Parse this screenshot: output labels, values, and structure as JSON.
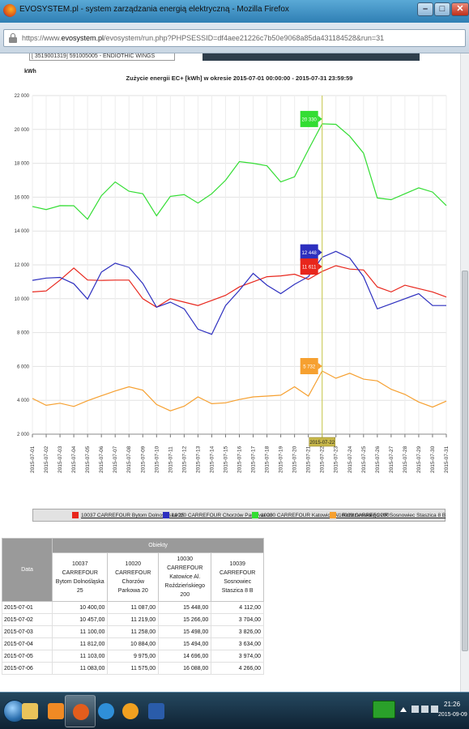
{
  "window": {
    "title": "EVOSYSTEM.pl - system zarządzania energią elektryczną - Mozilla Firefox",
    "minimize_glyph": "–",
    "maximize_glyph": "□",
    "close_glyph": "✕"
  },
  "browser": {
    "url_prefix": "https://www.",
    "url_domain": "evosystem.pl",
    "url_rest": "/evosystem/run.php?PHPSESSID=df4aee21226c7b50e9068a85da431184528&run=31"
  },
  "page": {
    "previous_row_text": "[ 3519001319] 591005005 - ENDIOTHIC WINGS"
  },
  "chart_data": {
    "type": "line",
    "title": "Zużycie energii EC+ [kWh] w okresie 2015-07-01 00:00:00 - 2015-07-31 23:59:59",
    "ylabel": "kWh",
    "ylim": [
      2000,
      22000
    ],
    "yticks": [
      2000,
      4000,
      6000,
      8000,
      10000,
      12000,
      14000,
      16000,
      18000,
      20000,
      22000
    ],
    "ytick_labels": [
      "2 000",
      "4 000",
      "6 000",
      "8 000",
      "10 000",
      "12 000",
      "14 000",
      "16 000",
      "18 000",
      "20 000",
      "22 000"
    ],
    "grid": true,
    "categories": [
      "2015-07-01",
      "2015-07-02",
      "2015-07-03",
      "2015-07-04",
      "2015-07-05",
      "2015-07-06",
      "2015-07-07",
      "2015-07-08",
      "2015-07-09",
      "2015-07-10",
      "2015-07-11",
      "2015-07-12",
      "2015-07-13",
      "2015-07-14",
      "2015-07-15",
      "2015-07-16",
      "2015-07-17",
      "2015-07-18",
      "2015-07-19",
      "2015-07-20",
      "2015-07-21",
      "2015-07-22",
      "2015-07-23",
      "2015-07-24",
      "2015-07-25",
      "2015-07-26",
      "2015-07-27",
      "2015-07-28",
      "2015-07-29",
      "2015-07-30",
      "2015-07-31"
    ],
    "series": [
      {
        "name": "10037 CARREFOUR Bytom Dolnośląska 25",
        "color": "#e8261c",
        "values": [
          10400,
          10457,
          11100,
          11812,
          11103,
          11083,
          11100,
          11100,
          10000,
          9500,
          10000,
          9800,
          9600,
          9900,
          10200,
          10700,
          11000,
          11300,
          11350,
          11450,
          11150,
          11611,
          11950,
          11750,
          11700,
          10700,
          10400,
          10800,
          10600,
          10400,
          10100
        ]
      },
      {
        "name": "10020 CARREFOUR Chorzów Parkowa 20",
        "color": "#2d2fbf",
        "values": [
          11087,
          11219,
          11258,
          10884,
          9975,
          11575,
          12100,
          11850,
          10900,
          9500,
          9800,
          9400,
          8200,
          7900,
          9600,
          10500,
          11500,
          10800,
          10300,
          10850,
          11300,
          12448,
          12800,
          12400,
          11300,
          9400,
          9700,
          10000,
          10300,
          9600,
          9600
        ]
      },
      {
        "name": "10030 CARREFOUR Katowice Al. Roździeńskiego 200",
        "color": "#33dd33",
        "values": [
          15448,
          15266,
          15498,
          15494,
          14696,
          16088,
          16900,
          16350,
          16200,
          14900,
          16050,
          16150,
          15650,
          16200,
          17000,
          18100,
          18000,
          17850,
          16900,
          17200,
          18800,
          20330,
          20300,
          19600,
          18600,
          15950,
          15850,
          16200,
          16550,
          16300,
          15500
        ]
      },
      {
        "name": "10039 CARREFOUR Sosnowiec Staszica 8 B",
        "color": "#f6a030",
        "values": [
          4112,
          3704,
          3826,
          3634,
          3974,
          4266,
          4550,
          4800,
          4600,
          3750,
          3380,
          3650,
          4200,
          3800,
          3850,
          4050,
          4200,
          4250,
          4300,
          4800,
          4250,
          5732,
          5300,
          5600,
          5250,
          5150,
          4650,
          4350,
          3900,
          3600,
          3950
        ]
      }
    ],
    "tooltip": {
      "category": "2015-07-22",
      "labels": [
        "20 330",
        "12 448",
        "11 611",
        "5 732"
      ]
    }
  },
  "legend": {
    "items": [
      {
        "label": "10037 CARREFOUR Bytom Dolnośląska 25",
        "color": "#e8261c"
      },
      {
        "label": "10020 CARREFOUR Chorzów Parkowa 20",
        "color": "#2d2fbf"
      },
      {
        "label": "10030 CARREFOUR Katowice Al. Roździeńskiego 200",
        "color": "#33dd33"
      },
      {
        "label": "10039 CARREFOUR Sosnowiec Staszica 8 B",
        "color": "#f6a030"
      }
    ]
  },
  "table": {
    "group_header": "Obiekty",
    "date_header": "Data",
    "columns": [
      "10037 CARREFOUR Bytom Dolnośląska 25",
      "10020 CARREFOUR Chorzów Parkowa 20",
      "10030 CARREFOUR Katowice Al. Roździeńskiego 200",
      "10039 CARREFOUR Sosnowiec Staszica 8 B"
    ],
    "rows": [
      {
        "date": "2015-07-01",
        "values": [
          "10 400,00",
          "11 087,00",
          "15 448,00",
          "4 112,00"
        ]
      },
      {
        "date": "2015-07-02",
        "values": [
          "10 457,00",
          "11 219,00",
          "15 266,00",
          "3 704,00"
        ]
      },
      {
        "date": "2015-07-03",
        "values": [
          "11 100,00",
          "11 258,00",
          "15 498,00",
          "3 826,00"
        ]
      },
      {
        "date": "2015-07-04",
        "values": [
          "11 812,00",
          "10 884,00",
          "15 494,00",
          "3 634,00"
        ]
      },
      {
        "date": "2015-07-05",
        "values": [
          "11 103,00",
          "9 975,00",
          "14 696,00",
          "3 974,00"
        ]
      },
      {
        "date": "2015-07-06",
        "values": [
          "11 083,00",
          "11 575,00",
          "16 088,00",
          "4 266,00"
        ]
      }
    ]
  },
  "taskbar": {
    "apps": [
      {
        "name": "explorer-icon",
        "color": "#e9c35a"
      },
      {
        "name": "media-player-icon",
        "color": "#f08a24"
      },
      {
        "name": "firefox-icon",
        "color": "#e35d1c"
      },
      {
        "name": "internet-explorer-icon",
        "color": "#2f8fd8"
      },
      {
        "name": "app-orange-icon",
        "color": "#f0a020"
      },
      {
        "name": "word-document-icon",
        "color": "#2a5caa"
      }
    ],
    "clock_time": "21:26",
    "clock_date": "2015-09-09"
  }
}
